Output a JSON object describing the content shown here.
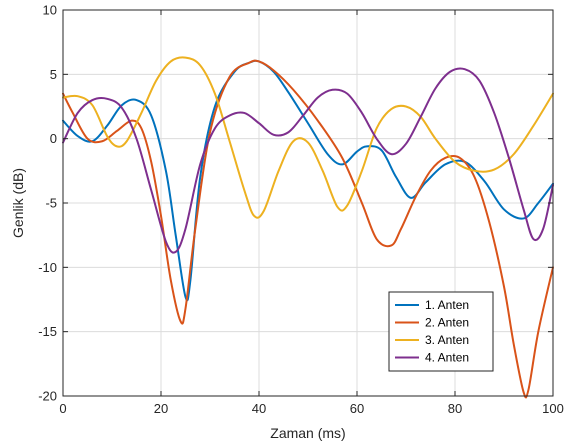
{
  "chart_data": {
    "type": "line",
    "xlabel": "Zaman (ms)",
    "ylabel": "Genlik (dB)",
    "xlim": [
      0,
      100
    ],
    "ylim": [
      -20,
      10
    ],
    "xticks": [
      0,
      20,
      40,
      60,
      80,
      100
    ],
    "yticks": [
      -20,
      -15,
      -10,
      -5,
      0,
      5,
      10
    ],
    "xtick_labels": [
      "0",
      "20",
      "40",
      "60",
      "80",
      "100"
    ],
    "ytick_labels": [
      "-20",
      "-15",
      "-10",
      "-5",
      "0",
      "5",
      "10"
    ],
    "grid": true,
    "legend_position": "bottom-right",
    "series": [
      {
        "name": "1. Anten",
        "color": "#0072BD",
        "x": [
          0,
          3,
          6,
          9,
          12,
          15,
          18,
          21,
          23,
          25,
          26,
          28,
          31,
          35,
          38,
          40,
          43,
          46,
          50,
          54,
          57,
          60,
          62,
          65,
          68,
          71,
          74,
          78,
          82,
          86,
          90,
          94,
          97,
          100
        ],
        "y": [
          1.4,
          0.2,
          -0.2,
          1.0,
          2.6,
          3.0,
          1.8,
          -2.5,
          -7.5,
          -12.3,
          -11.0,
          -3.0,
          2.5,
          5.2,
          5.9,
          6.0,
          5.2,
          3.6,
          1.2,
          -1.2,
          -2.0,
          -1.0,
          -0.6,
          -0.9,
          -3.0,
          -4.6,
          -3.4,
          -2.0,
          -1.8,
          -3.3,
          -5.5,
          -6.2,
          -5.0,
          -3.5
        ]
      },
      {
        "name": "2. Anten",
        "color": "#D95319",
        "x": [
          0,
          2,
          5,
          8,
          11,
          14,
          16,
          18,
          20,
          22,
          24,
          25,
          27,
          30,
          34,
          38,
          40,
          43,
          47,
          52,
          57,
          61,
          64,
          67,
          69,
          72,
          75,
          78,
          81,
          84,
          87,
          90,
          92,
          94,
          95,
          97,
          100
        ],
        "y": [
          3.5,
          2.0,
          0.0,
          -0.2,
          0.6,
          1.4,
          0.8,
          -1.8,
          -6.0,
          -11.0,
          -14.2,
          -13.2,
          -7.0,
          0.5,
          4.8,
          5.9,
          6.0,
          5.3,
          3.8,
          1.4,
          -1.5,
          -5.0,
          -7.8,
          -8.3,
          -7.0,
          -4.5,
          -2.5,
          -1.5,
          -1.5,
          -3.0,
          -6.5,
          -11.5,
          -16.0,
          -19.7,
          -19.5,
          -15.0,
          -10.0
        ]
      },
      {
        "name": "3. Anten",
        "color": "#EDB120",
        "x": [
          0,
          3,
          6,
          9,
          11,
          13,
          16,
          19,
          22,
          25,
          28,
          31,
          34,
          37,
          39,
          41,
          44,
          47,
          50,
          53,
          56,
          58,
          61,
          64,
          67,
          70,
          73,
          76,
          80,
          84,
          88,
          92,
          96,
          100
        ],
        "y": [
          3.2,
          3.3,
          2.6,
          0.2,
          -0.6,
          -0.2,
          2.0,
          4.5,
          6.0,
          6.3,
          5.7,
          3.5,
          -0.2,
          -4.0,
          -6.0,
          -5.6,
          -2.5,
          -0.2,
          -0.3,
          -2.5,
          -5.3,
          -5.2,
          -2.5,
          0.8,
          2.3,
          2.5,
          1.7,
          0.0,
          -1.8,
          -2.5,
          -2.4,
          -1.2,
          1.0,
          3.5
        ]
      },
      {
        "name": "4. Anten",
        "color": "#7E2F8E",
        "x": [
          0,
          3,
          6,
          9,
          12,
          15,
          18,
          21,
          23,
          25,
          28,
          31,
          34,
          37,
          40,
          43,
          46,
          49,
          52,
          55,
          58,
          61,
          64,
          67,
          70,
          73,
          76,
          79,
          82,
          85,
          88,
          91,
          94,
          96,
          98,
          100
        ],
        "y": [
          -0.3,
          2.0,
          3.0,
          3.1,
          2.4,
          0.0,
          -4.0,
          -8.0,
          -8.8,
          -7.0,
          -2.0,
          0.8,
          1.8,
          2.0,
          1.2,
          0.3,
          0.5,
          1.8,
          3.2,
          3.8,
          3.5,
          2.0,
          0.0,
          -1.2,
          -0.4,
          1.7,
          3.9,
          5.2,
          5.4,
          4.5,
          2.0,
          -1.5,
          -5.5,
          -7.8,
          -7.0,
          -3.6
        ]
      }
    ]
  }
}
